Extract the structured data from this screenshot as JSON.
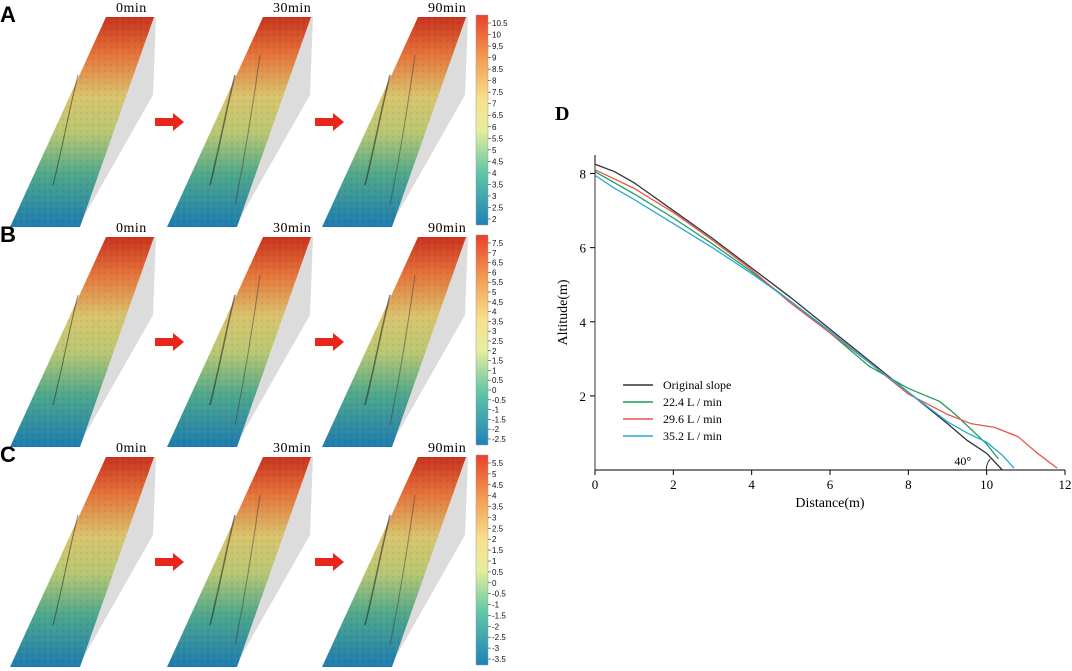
{
  "panels": [
    {
      "letter": "A",
      "times": [
        "0min",
        "30min",
        "90min"
      ],
      "colorbar": [
        "10.5",
        "10",
        "9.5",
        "9",
        "8.5",
        "8",
        "7.5",
        "7",
        "6.5",
        "6",
        "5.5",
        "5",
        "4.5",
        "4",
        "3.5",
        "3",
        "2.5",
        "2"
      ]
    },
    {
      "letter": "B",
      "times": [
        "0min",
        "30min",
        "90min"
      ],
      "colorbar": [
        "7.5",
        "7",
        "6.5",
        "6",
        "5.5",
        "5",
        "4.5",
        "4",
        "3.5",
        "3",
        "2.5",
        "2",
        "1.5",
        "1",
        "0.5",
        "0",
        "-0.5",
        "-1",
        "-1.5",
        "-2",
        "-2.5"
      ]
    },
    {
      "letter": "C",
      "times": [
        "0min",
        "30min",
        "90min"
      ],
      "colorbar": [
        "5.5",
        "5",
        "4.5",
        "4",
        "3.5",
        "3",
        "2.5",
        "2",
        "1.5",
        "1",
        "0.5",
        "0",
        "-0.5",
        "-1",
        "-1.5",
        "-2",
        "-2.5",
        "-3",
        "-3.5"
      ]
    }
  ],
  "colors": {
    "arrow": "#e8261b",
    "dem_high": "#d7301f",
    "dem_mid": "#e9e27a",
    "dem_low": "#1f7fb8"
  },
  "chart_data": {
    "panel_label": "D",
    "type": "line",
    "xlabel": "Distance(m)",
    "ylabel": "Altitude(m)",
    "xlim": [
      0,
      12
    ],
    "ylim": [
      0,
      8.5
    ],
    "xticks": [
      0,
      2,
      4,
      6,
      8,
      10,
      12
    ],
    "yticks": [
      2,
      4,
      6,
      8
    ],
    "angle_label": "40°",
    "series": [
      {
        "name": "Original slope",
        "color": "#333333",
        "x": [
          0,
          0.5,
          1,
          2,
          3,
          4,
          5,
          6,
          7,
          8,
          9,
          9.5,
          10,
          10.4
        ],
        "y": [
          8.25,
          8.05,
          7.75,
          7.0,
          6.25,
          5.45,
          4.65,
          3.8,
          2.95,
          2.1,
          1.25,
          0.8,
          0.45,
          0.0
        ]
      },
      {
        "name": "22.4 L / min",
        "color": "#1f9e5a",
        "x": [
          0,
          0.5,
          1,
          2,
          3,
          4,
          5,
          6,
          7,
          8,
          8.8,
          9.2,
          9.6,
          10.0,
          10.3
        ],
        "y": [
          8.05,
          7.75,
          7.45,
          6.8,
          6.1,
          5.35,
          4.55,
          3.7,
          2.8,
          2.2,
          1.85,
          1.5,
          1.1,
          0.7,
          0.3
        ]
      },
      {
        "name": "29.6 L / min",
        "color": "#e8544d",
        "x": [
          0,
          0.5,
          1,
          2,
          3,
          4,
          5,
          6,
          7,
          8,
          9,
          9.6,
          10.2,
          10.8,
          11.3,
          11.8
        ],
        "y": [
          8.1,
          7.85,
          7.6,
          6.95,
          6.2,
          5.4,
          4.5,
          3.7,
          2.9,
          2.05,
          1.5,
          1.25,
          1.15,
          0.9,
          0.45,
          0.05
        ]
      },
      {
        "name": "35.2 L / min",
        "color": "#27a8d6",
        "x": [
          0,
          0.5,
          1,
          2,
          3,
          4,
          5,
          6,
          7,
          8,
          9,
          9.5,
          10.0,
          10.4,
          10.7
        ],
        "y": [
          7.95,
          7.6,
          7.3,
          6.65,
          6.0,
          5.3,
          4.55,
          3.75,
          2.9,
          2.1,
          1.3,
          1.0,
          0.75,
          0.4,
          0.05
        ]
      }
    ]
  }
}
